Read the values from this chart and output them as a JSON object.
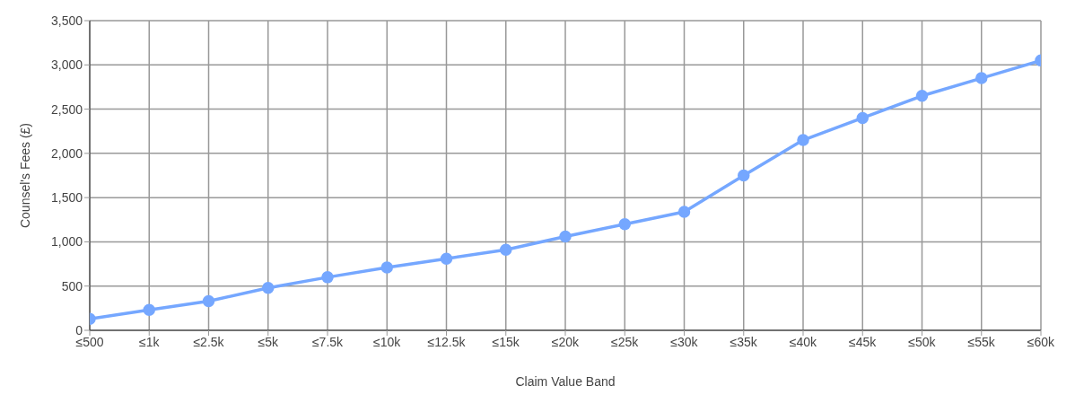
{
  "chart_data": {
    "type": "line",
    "xlabel": "Claim Value Band",
    "ylabel": "Counsel's Fees (£)",
    "categories": [
      "≤500",
      "≤1k",
      "≤2.5k",
      "≤5k",
      "≤7.5k",
      "≤10k",
      "≤12.5k",
      "≤15k",
      "≤20k",
      "≤25k",
      "≤30k",
      "≤35k",
      "≤40k",
      "≤45k",
      "≤50k",
      "≤55k",
      "≤60k"
    ],
    "series": [
      {
        "color": "#75a7ff",
        "values": [
          130,
          230,
          330,
          480,
          600,
          710,
          810,
          910,
          1060,
          1200,
          1340,
          1750,
          2150,
          2400,
          2650,
          2850,
          3050
        ]
      }
    ],
    "ylim": [
      0,
      3500
    ],
    "yticks": [
      {
        "value": 0,
        "label": "0"
      },
      {
        "value": 500,
        "label": "500"
      },
      {
        "value": 1000,
        "label": "1,000"
      },
      {
        "value": 1500,
        "label": "1,500"
      },
      {
        "value": 2000,
        "label": "2,000"
      },
      {
        "value": 2500,
        "label": "2,500"
      },
      {
        "value": 3000,
        "label": "3,000"
      },
      {
        "value": 3500,
        "label": "3,500"
      }
    ],
    "grid": true,
    "marker": "circle",
    "line_style": "solid",
    "legend": false
  }
}
